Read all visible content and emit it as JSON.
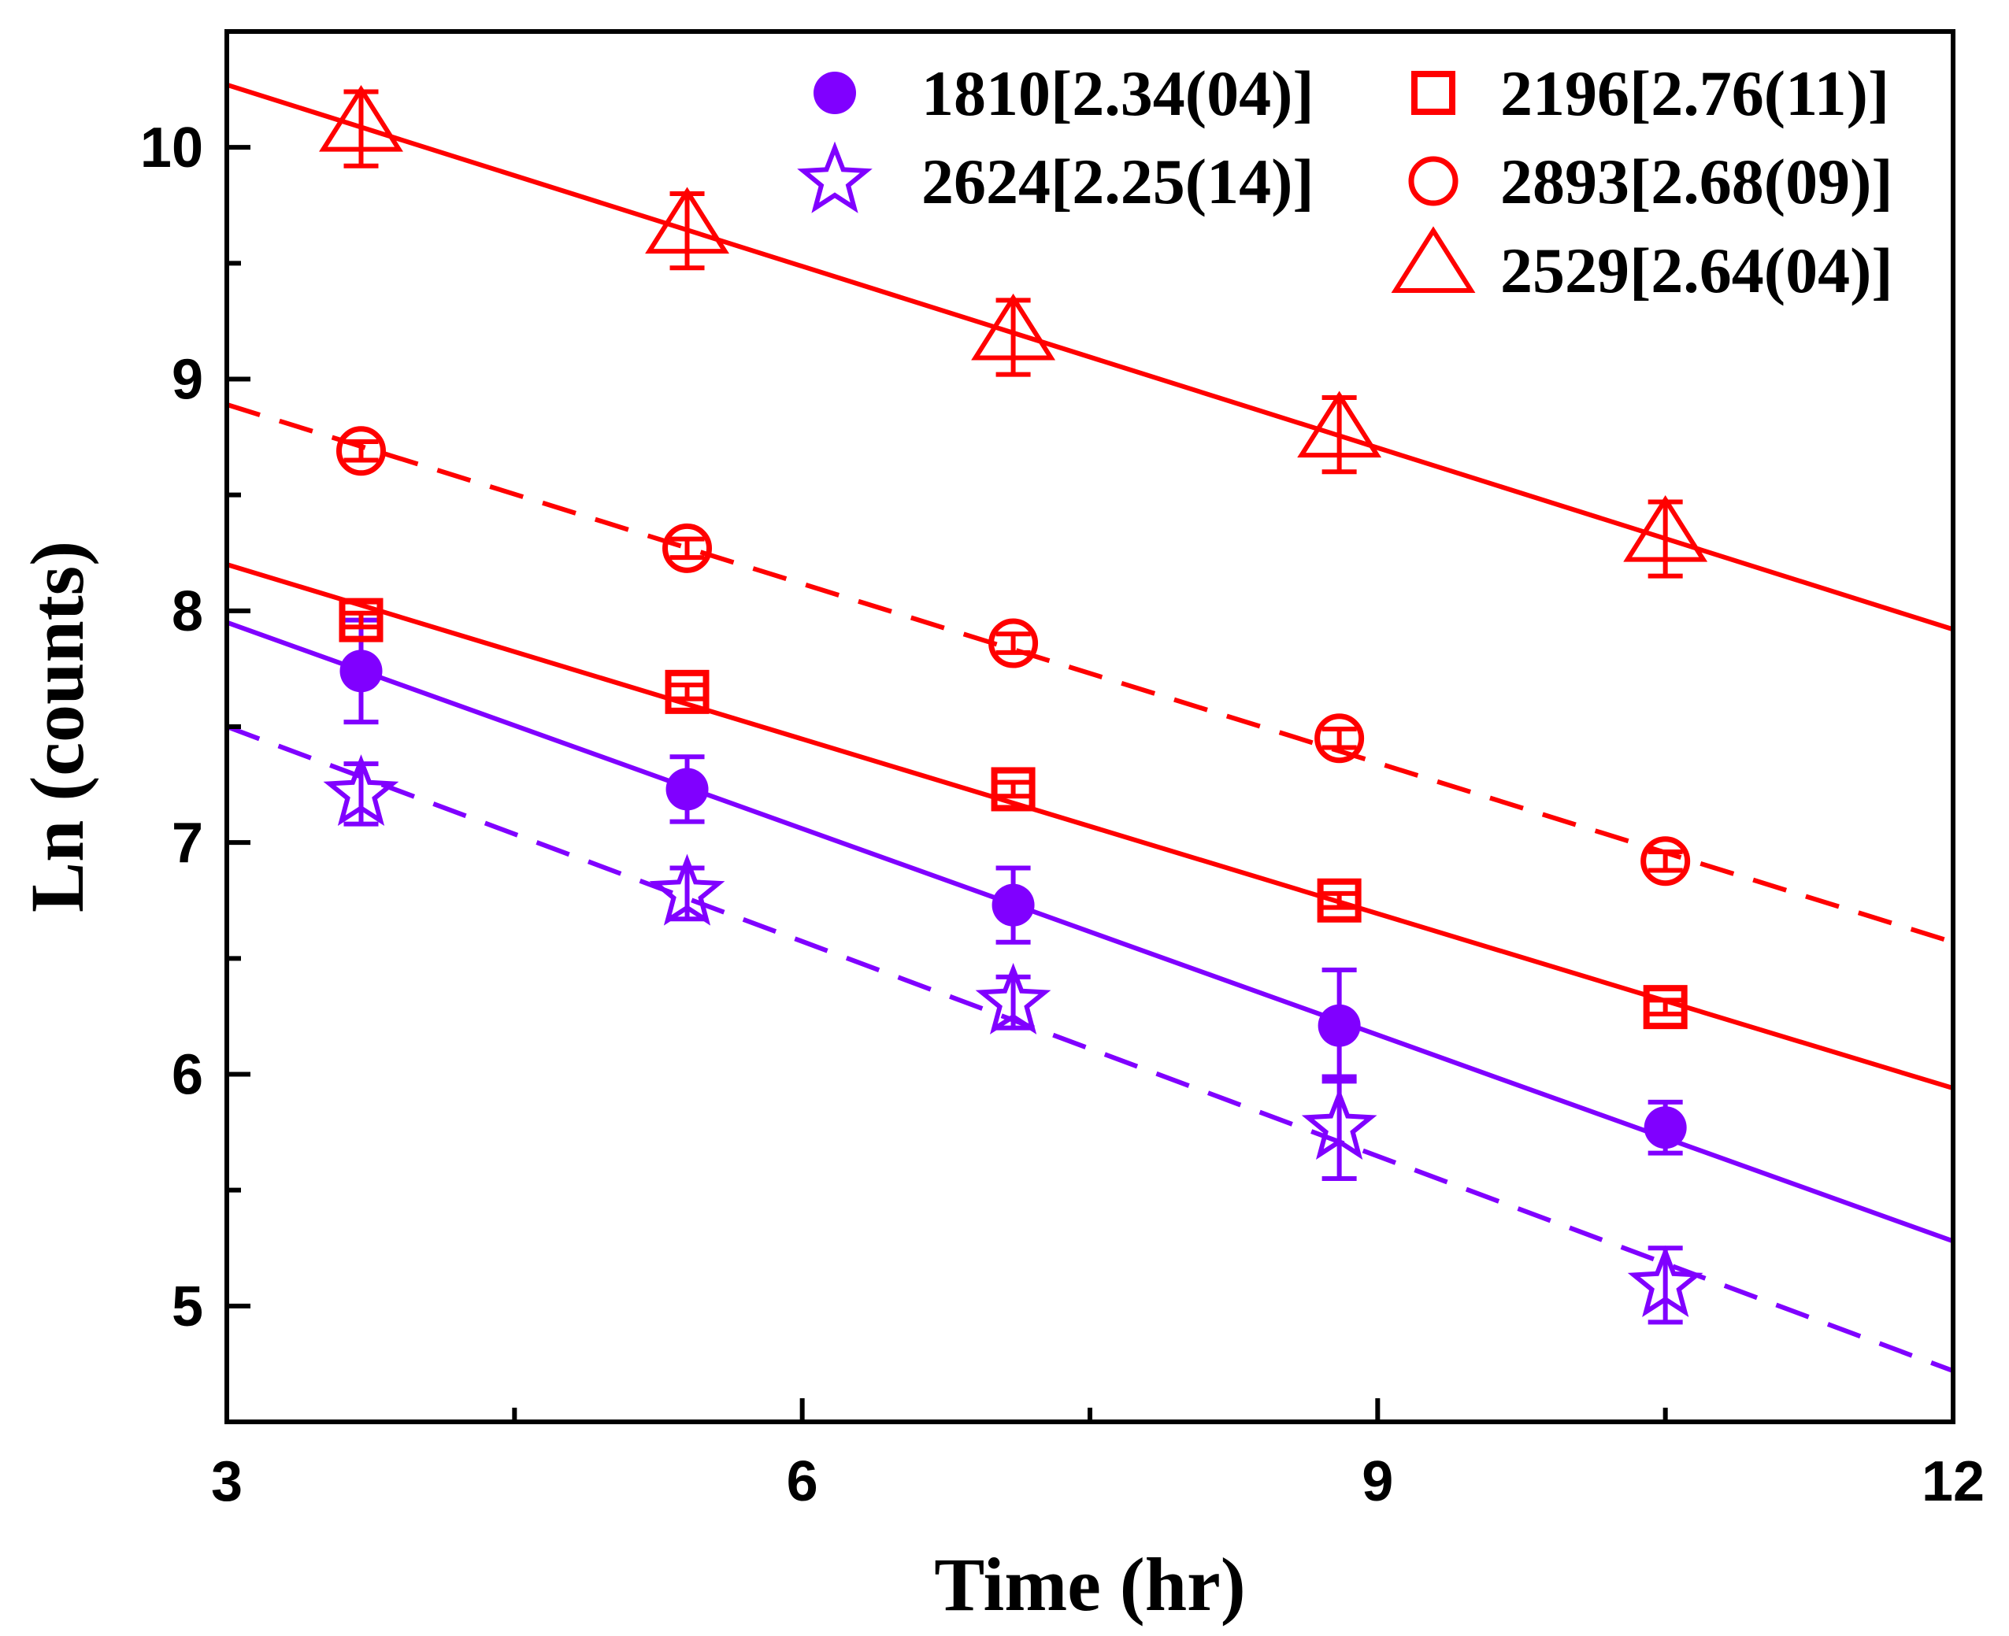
{
  "chart_data": {
    "type": "scatter",
    "title": "",
    "xlabel": "Time (hr)",
    "ylabel": "Ln (counts)",
    "xlim": [
      3,
      12
    ],
    "ylim": [
      4.5,
      10.5
    ],
    "xticks": [
      3,
      6,
      9,
      12
    ],
    "xticks_minor": [
      4.5,
      7.5,
      10.5
    ],
    "yticks": [
      5,
      6,
      7,
      8,
      9,
      10
    ],
    "yticks_minor": [
      5.5,
      6.5,
      7.5,
      8.5,
      9.5,
      10.5
    ],
    "x": [
      3.7,
      5.4,
      7.1,
      8.8,
      10.5
    ],
    "series": [
      {
        "name": "1810[2.34(04)]",
        "marker": "filled-circle",
        "color": "#8000ff",
        "line": "solid",
        "values": [
          7.74,
          7.23,
          6.73,
          6.21,
          5.77
        ],
        "errors": [
          0.22,
          0.14,
          0.16,
          0.24,
          0.11
        ],
        "fit": [
          7.95,
          5.28
        ]
      },
      {
        "name": "2196[2.76(11)]",
        "marker": "open-square",
        "color": "#ff0000",
        "line": "solid",
        "values": [
          7.96,
          7.65,
          7.23,
          6.75,
          6.29
        ],
        "errors": [
          0.03,
          0.03,
          0.03,
          0.03,
          0.03
        ],
        "fit": [
          8.2,
          5.94
        ]
      },
      {
        "name": "2624[2.25(14)]",
        "marker": "open-star",
        "color": "#8000ff",
        "line": "dashed",
        "values": [
          7.21,
          6.78,
          6.31,
          5.77,
          5.09
        ],
        "errors": [
          0.13,
          0.11,
          0.11,
          0.22,
          0.16
        ],
        "fit": [
          7.5,
          4.72
        ]
      },
      {
        "name": "2893[2.68(09)]",
        "marker": "open-circle",
        "color": "#ff0000",
        "line": "dashed",
        "values": [
          8.69,
          8.27,
          7.86,
          7.45,
          6.92
        ],
        "errors": [
          0.04,
          0.04,
          0.04,
          0.04,
          0.04
        ],
        "fit": [
          8.89,
          6.57
        ]
      },
      {
        "name": "2529[2.64(04)]",
        "marker": "open-triangle",
        "color": "#ff0000",
        "line": "solid",
        "values": [
          10.08,
          9.64,
          9.18,
          8.76,
          8.31
        ],
        "errors": [
          0.16,
          0.16,
          0.16,
          0.16,
          0.16
        ],
        "fit": [
          10.27,
          7.92
        ]
      }
    ],
    "legend": {
      "placement": "top-right",
      "columns": [
        [
          "1810[2.34(04)]",
          "2624[2.25(14)]"
        ],
        [
          "2196[2.76(11)]",
          "2893[2.68(09)]",
          "2529[2.64(04)]"
        ]
      ]
    }
  }
}
